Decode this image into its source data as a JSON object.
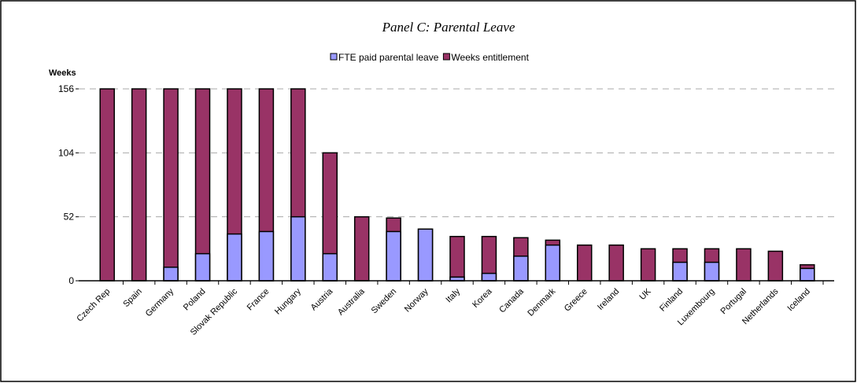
{
  "chart_data": {
    "type": "bar",
    "barmode": "overlay",
    "title": "Panel C: Parental Leave",
    "ylabel": "Weeks",
    "categories": [
      "Czech Rep",
      "Spain",
      "Germany",
      "Poland",
      "Slovak Republic",
      "France",
      "Hungary",
      "Austria",
      "Australia",
      "Sweden",
      "Norway",
      "Italy",
      "Korea",
      "Canada",
      "Denmark",
      "Greece",
      "Ireland",
      "UK",
      "Finland",
      "Luxembourg",
      "Portugal",
      "Netherlands",
      "Iceland"
    ],
    "series": [
      {
        "name": "FTE paid parental leave",
        "color": "#9999ff",
        "values": [
          0,
          0,
          11,
          22,
          38,
          40,
          52,
          22,
          0,
          40,
          42,
          3,
          6,
          20,
          29,
          0,
          0,
          0,
          15,
          15,
          0,
          0,
          10
        ]
      },
      {
        "name": "Weeks entitlement",
        "color": "#993366",
        "values": [
          156,
          156,
          156,
          156,
          156,
          156,
          156,
          104,
          52,
          51,
          42,
          36,
          36,
          35,
          33,
          29,
          29,
          26,
          26,
          26,
          26,
          24,
          13
        ]
      }
    ],
    "ylim": [
      0,
      156
    ],
    "yticks": [
      0,
      52,
      104,
      156
    ],
    "grid": true,
    "legend": "top"
  }
}
